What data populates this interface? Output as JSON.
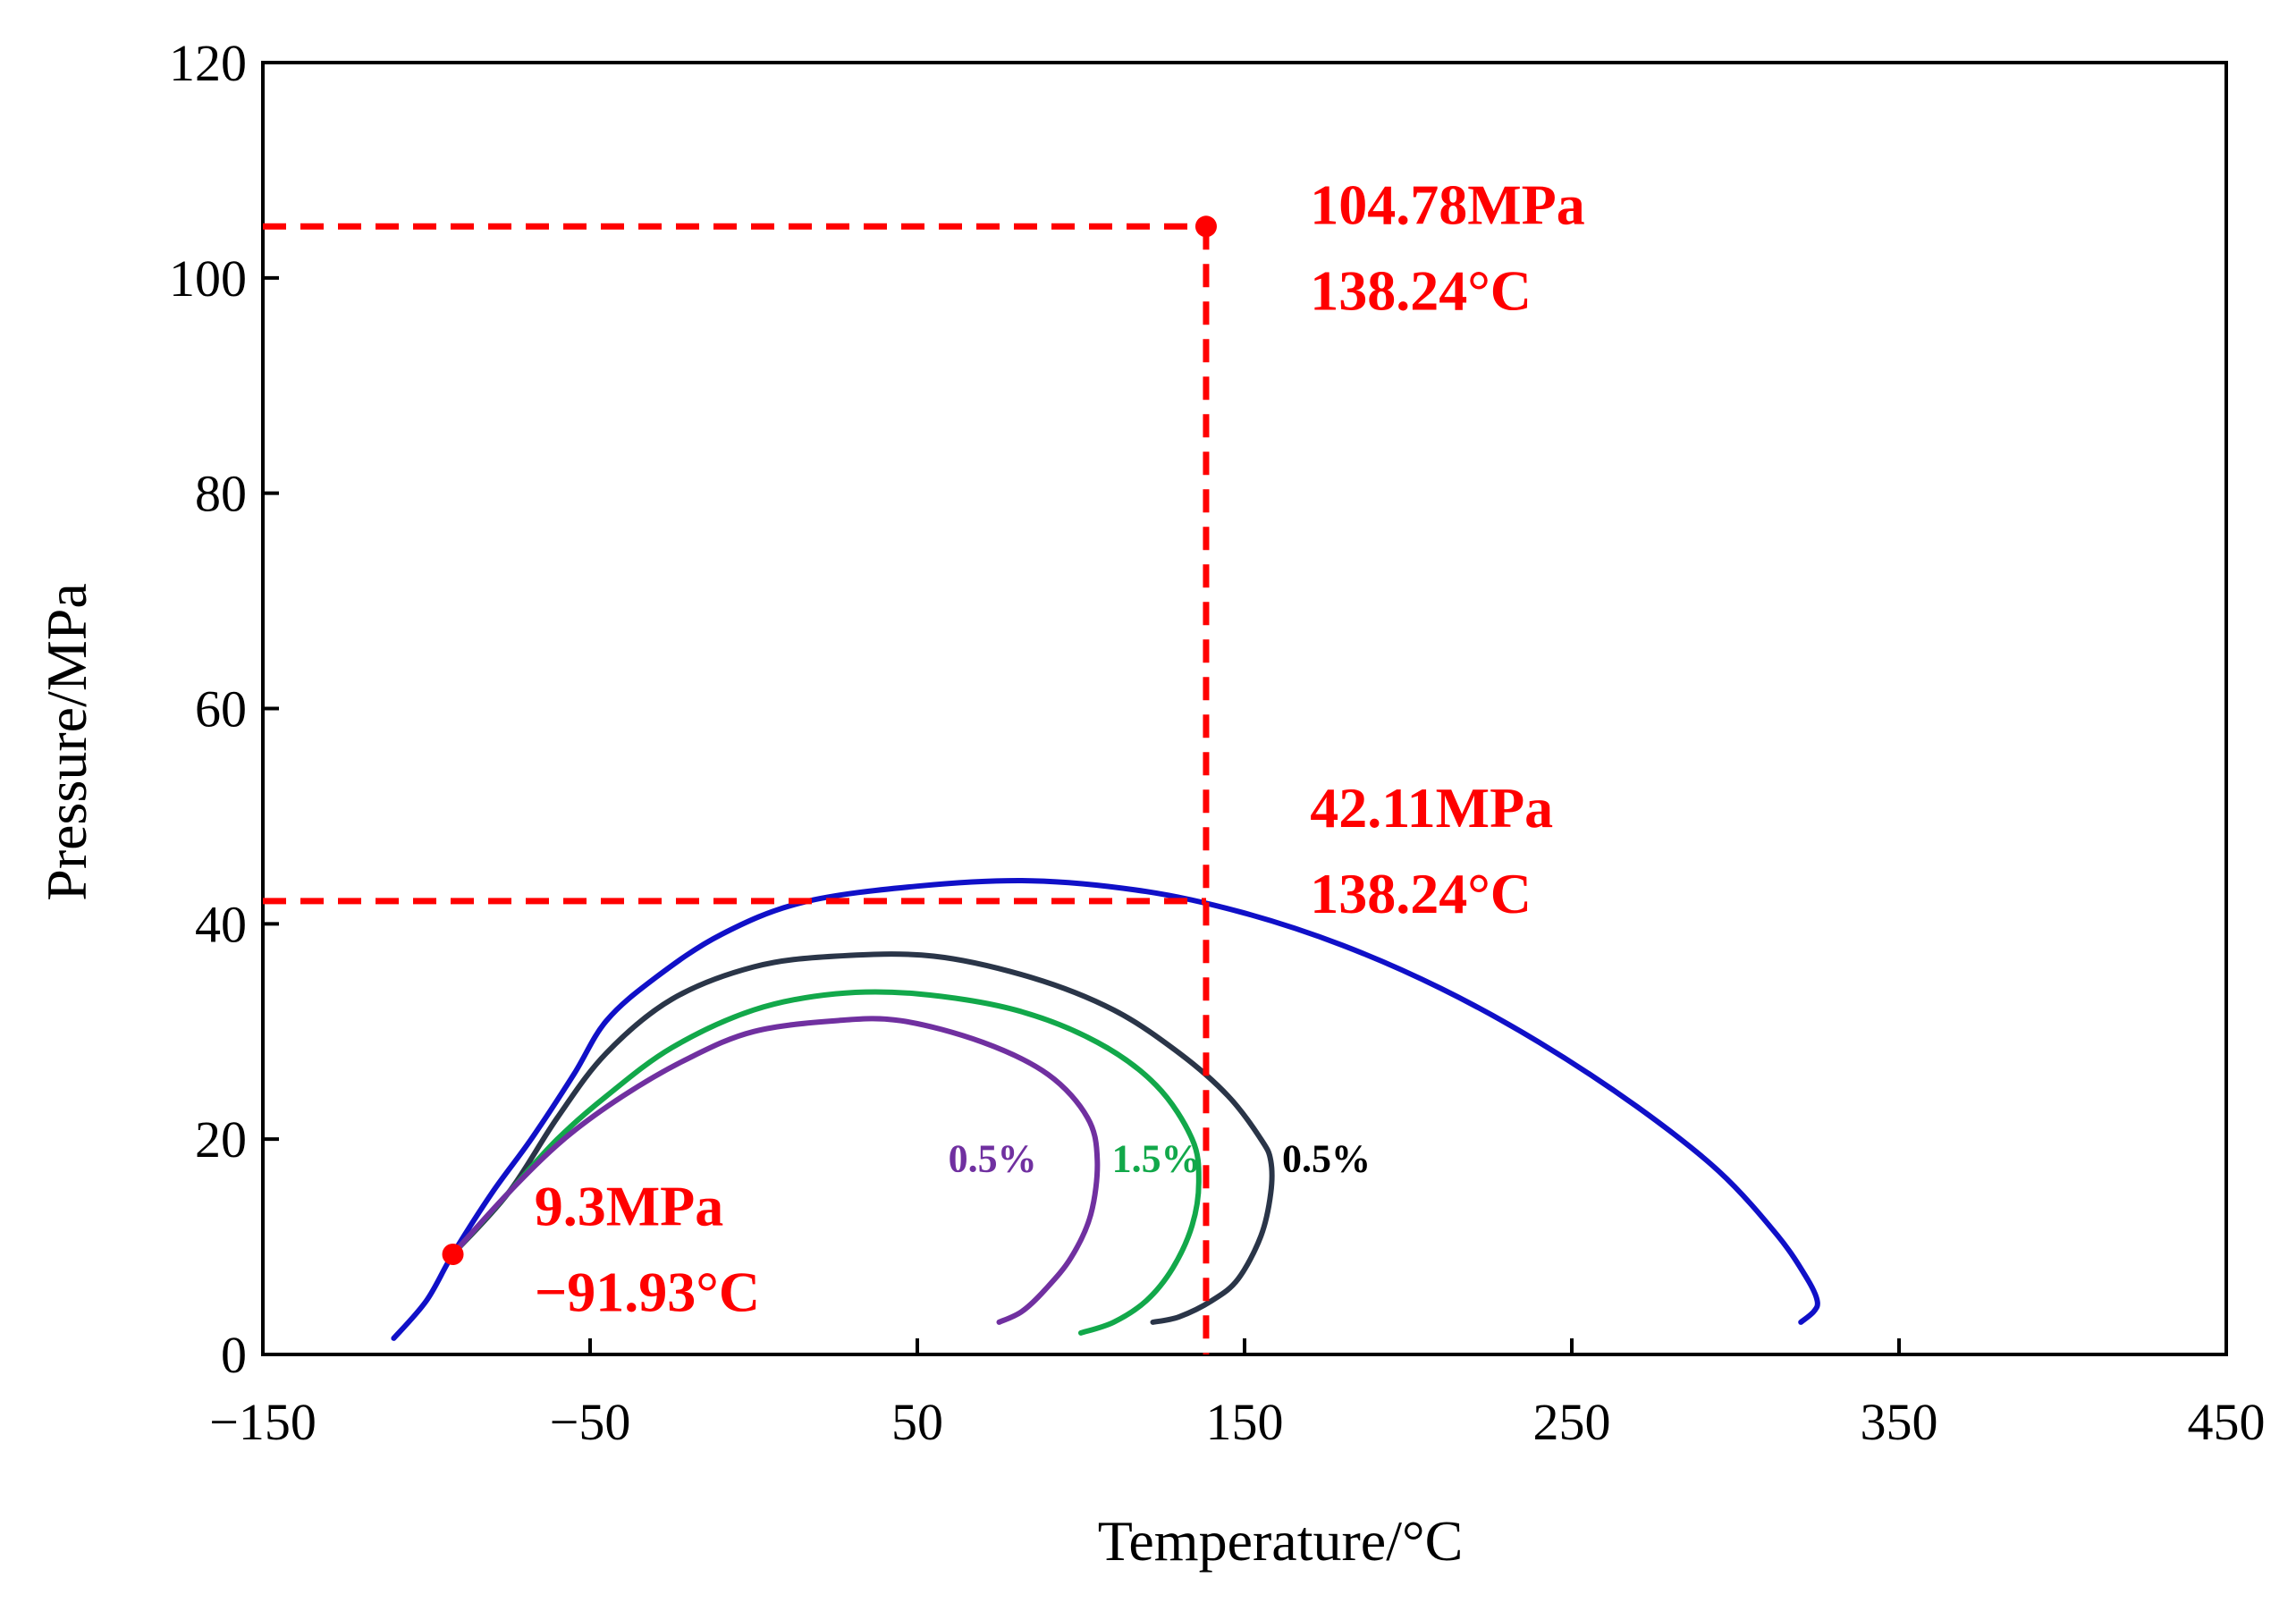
{
  "chart_data": {
    "type": "line",
    "title": "",
    "xlabel": "Temperature/°C",
    "ylabel": "Pressure/MPa",
    "xlim": [
      -150,
      450
    ],
    "ylim": [
      0,
      120
    ],
    "x_ticks": [
      -150,
      -50,
      50,
      150,
      250,
      350,
      450
    ],
    "y_ticks": [
      0,
      20,
      40,
      60,
      80,
      100,
      120
    ],
    "x_tick_labels": [
      "−150",
      "−50",
      "50",
      "150",
      "250",
      "350",
      "450"
    ],
    "y_tick_labels": [
      "0",
      "20",
      "40",
      "60",
      "80",
      "100",
      "120"
    ],
    "grid": false,
    "legend": "none",
    "series": [
      {
        "color": "#1010c8",
        "points": [
          [
            -110,
            1.5
          ],
          [
            -100,
            5
          ],
          [
            -92,
            9.3
          ],
          [
            -80,
            15
          ],
          [
            -68,
            20
          ],
          [
            -55,
            26
          ],
          [
            -45,
            31
          ],
          [
            -30,
            35
          ],
          [
            -10,
            39
          ],
          [
            15,
            42
          ],
          [
            50,
            43.5
          ],
          [
            85,
            44
          ],
          [
            120,
            43
          ],
          [
            150,
            41
          ],
          [
            180,
            38
          ],
          [
            210,
            34
          ],
          [
            240,
            29
          ],
          [
            270,
            23
          ],
          [
            295,
            17
          ],
          [
            313,
            11
          ],
          [
            322,
            7
          ],
          [
            325,
            5
          ],
          [
            324,
            4
          ],
          [
            320,
            3
          ]
        ]
      },
      {
        "color": "#2a3548",
        "points": [
          [
            -92,
            9.3
          ],
          [
            -75,
            15
          ],
          [
            -60,
            22
          ],
          [
            -45,
            28
          ],
          [
            -25,
            33
          ],
          [
            0,
            36
          ],
          [
            25,
            37
          ],
          [
            55,
            37
          ],
          [
            85,
            35
          ],
          [
            110,
            32
          ],
          [
            130,
            28
          ],
          [
            145,
            24
          ],
          [
            155,
            20
          ],
          [
            158,
            18
          ],
          [
            158,
            15
          ],
          [
            155,
            11
          ],
          [
            148,
            7
          ],
          [
            140,
            5
          ],
          [
            130,
            3.5
          ],
          [
            122,
            3
          ]
        ]
      },
      {
        "color": "#12a84a",
        "points": [
          [
            -92,
            9.3
          ],
          [
            -75,
            15
          ],
          [
            -60,
            20
          ],
          [
            -45,
            24
          ],
          [
            -25,
            28.5
          ],
          [
            0,
            32
          ],
          [
            25,
            33.5
          ],
          [
            50,
            33.5
          ],
          [
            80,
            32
          ],
          [
            105,
            29
          ],
          [
            123,
            25
          ],
          [
            134,
            20
          ],
          [
            136,
            16
          ],
          [
            134,
            12
          ],
          [
            128,
            8
          ],
          [
            120,
            5
          ],
          [
            110,
            3
          ],
          [
            100,
            2
          ]
        ]
      },
      {
        "color": "#7030a0",
        "points": [
          [
            -92,
            9.3
          ],
          [
            -75,
            15
          ],
          [
            -58,
            20
          ],
          [
            -40,
            24
          ],
          [
            -20,
            27.5
          ],
          [
            0,
            30
          ],
          [
            25,
            31
          ],
          [
            45,
            31
          ],
          [
            70,
            29
          ],
          [
            90,
            26
          ],
          [
            102,
            22
          ],
          [
            105,
            18
          ],
          [
            103,
            13
          ],
          [
            97,
            9
          ],
          [
            89,
            6
          ],
          [
            82,
            4
          ],
          [
            75,
            3
          ]
        ]
      }
    ],
    "reference_lines": {
      "color": "#ff0000",
      "x": 138.24,
      "y_upper": 104.78,
      "y_lower": 42.11
    },
    "points": [
      {
        "x": 138.24,
        "y": 104.78,
        "color": "#ff0000"
      },
      {
        "x": -91.93,
        "y": 9.3,
        "color": "#ff0000"
      }
    ],
    "annotations": [
      {
        "lines": [
          "104.78MPa",
          "138.24°C"
        ],
        "x": 170,
        "y": 105,
        "color": "#ff0000"
      },
      {
        "lines": [
          "42.11MPa",
          "138.24°C"
        ],
        "x": 170,
        "y": 49,
        "color": "#ff0000"
      },
      {
        "lines": [
          "9.3MPa",
          "−91.93°C"
        ],
        "x": -67,
        "y": 12,
        "color": "#ff0000"
      }
    ],
    "curve_labels": [
      {
        "text": "0.5%",
        "x": 73,
        "y": 17,
        "color": "#7030a0"
      },
      {
        "text": "1.5%",
        "x": 123,
        "y": 17,
        "color": "#12a84a"
      },
      {
        "text": "0.5%",
        "x": 175,
        "y": 17,
        "color": "#000000"
      }
    ]
  }
}
